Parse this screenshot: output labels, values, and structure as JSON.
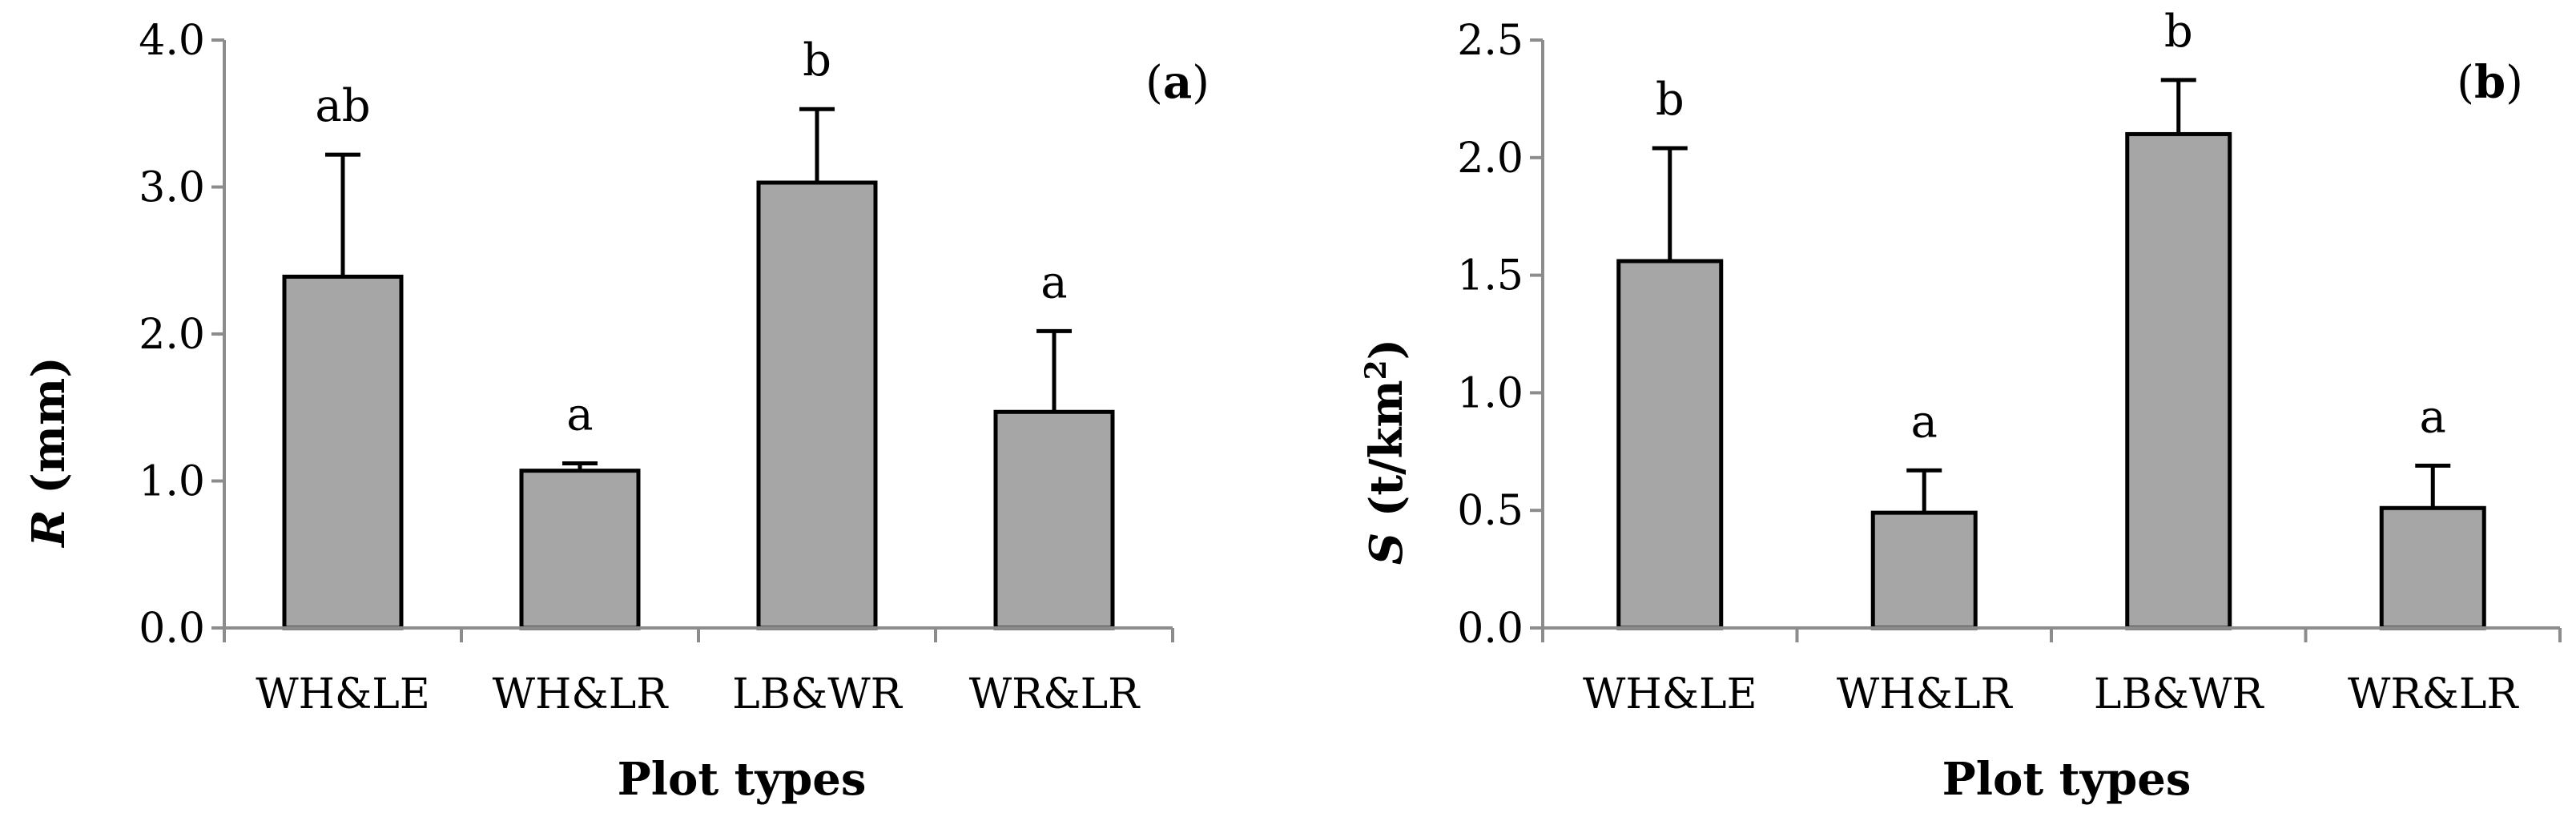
{
  "colors": {
    "bar_fill": "#a6a6a6",
    "bar_stroke": "#000000",
    "axis": "#8c8c8c",
    "error_bar": "#000000"
  },
  "chart_data": [
    {
      "type": "bar",
      "panel_label": "a",
      "categories": [
        "WH&LE",
        "WH&LR",
        "LB&WR",
        "WR&LR"
      ],
      "values": [
        2.39,
        1.07,
        3.03,
        1.47
      ],
      "error_upper": [
        0.83,
        0.05,
        0.5,
        0.55
      ],
      "significance": [
        "ab",
        "a",
        "b",
        "a"
      ],
      "xlabel": "Plot types",
      "ylabel_var": "R",
      "ylabel_unit": " (mm)",
      "ylim": [
        0,
        4
      ],
      "yticks": [
        "0.0",
        "1.0",
        "2.0",
        "3.0",
        "4.0"
      ],
      "grid": false
    },
    {
      "type": "bar",
      "panel_label": "b",
      "categories": [
        "WH&LE",
        "WH&LR",
        "LB&WR",
        "WR&LR"
      ],
      "values": [
        1.56,
        0.49,
        2.1,
        0.51
      ],
      "error_upper": [
        0.48,
        0.18,
        0.23,
        0.18
      ],
      "significance": [
        "b",
        "a",
        "b",
        "a"
      ],
      "xlabel": "Plot  types",
      "ylabel_var": "S",
      "ylabel_unit": " (t/km",
      "ylabel_sup": "2",
      "ylabel_close": ")",
      "ylim": [
        0,
        2.5
      ],
      "yticks": [
        "0.0",
        "0.5",
        "1.0",
        "1.5",
        "2.0",
        "2.5"
      ],
      "grid": false
    }
  ]
}
